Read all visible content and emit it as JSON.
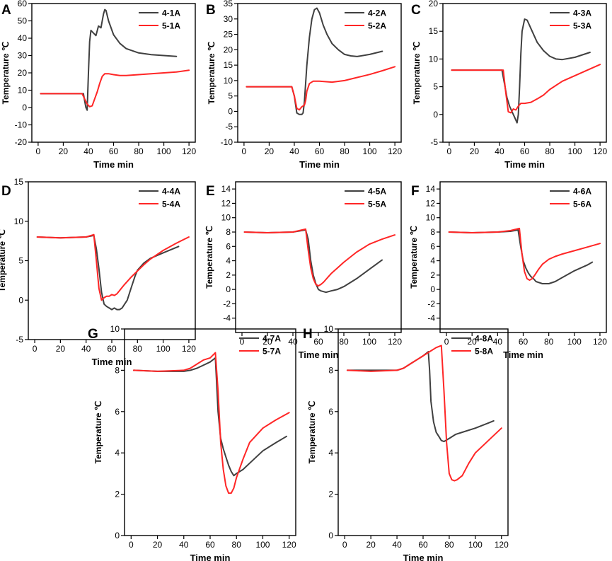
{
  "figure": {
    "colors": {
      "series_4": "#404040",
      "series_5": "#ff2626",
      "axis": "#000000"
    }
  },
  "chart_data": [
    {
      "panel": "A",
      "type": "line",
      "xlabel": "Time min",
      "ylabel": "Temperature ℃",
      "xlim": [
        -5,
        125
      ],
      "ylim": [
        -20,
        60
      ],
      "xticks": [
        0,
        20,
        40,
        60,
        80,
        100,
        120
      ],
      "yticks": [
        -20,
        -10,
        0,
        10,
        20,
        30,
        40,
        50,
        60
      ],
      "legend": "top-right",
      "series": [
        {
          "name": "4-1A",
          "color": "#404040",
          "x": [
            2,
            20,
            36,
            37,
            38,
            39,
            40,
            41,
            42,
            44,
            46,
            48,
            50,
            52,
            53,
            54,
            56,
            60,
            65,
            70,
            80,
            90,
            100,
            110
          ],
          "y": [
            8,
            8,
            8,
            4,
            0,
            -1.5,
            20,
            38,
            44.5,
            43,
            41.5,
            47,
            46,
            54,
            56.5,
            56,
            50,
            42,
            37,
            34,
            31.5,
            30.5,
            30,
            29.5
          ]
        },
        {
          "name": "5-1A",
          "color": "#ff2626",
          "x": [
            2,
            20,
            35,
            37,
            39,
            41,
            43,
            45,
            47,
            49,
            51,
            53,
            56,
            60,
            65,
            70,
            80,
            90,
            100,
            110,
            120
          ],
          "y": [
            8,
            8,
            8,
            5,
            2,
            0.5,
            1,
            5,
            9,
            14,
            18,
            19.5,
            19.5,
            19,
            18.5,
            18.5,
            19,
            19.5,
            20,
            20.5,
            21.5
          ]
        }
      ]
    },
    {
      "panel": "B",
      "type": "line",
      "xlabel": "Time min",
      "ylabel": "Temperature ℃",
      "xlim": [
        -5,
        125
      ],
      "ylim": [
        -10,
        35
      ],
      "xticks": [
        0,
        20,
        40,
        60,
        80,
        100,
        120
      ],
      "yticks": [
        -10,
        -5,
        0,
        5,
        10,
        15,
        20,
        25,
        30,
        35
      ],
      "legend": "top-right",
      "series": [
        {
          "name": "4-2A",
          "color": "#404040",
          "x": [
            2,
            20,
            38,
            40,
            42,
            44,
            46,
            47,
            48,
            50,
            52,
            54,
            56,
            58,
            60,
            63,
            66,
            70,
            75,
            80,
            85,
            90,
            100,
            110
          ],
          "y": [
            8,
            8,
            8,
            5,
            -0.5,
            -1,
            -1,
            -0.5,
            3,
            15,
            24,
            30,
            33,
            33.5,
            32,
            28,
            25,
            22,
            20,
            18.5,
            18,
            17.8,
            18.5,
            19.5
          ]
        },
        {
          "name": "5-2A",
          "color": "#ff2626",
          "x": [
            2,
            20,
            38,
            40,
            42,
            44,
            46,
            48,
            49,
            50,
            52,
            55,
            60,
            70,
            80,
            90,
            100,
            110,
            120
          ],
          "y": [
            8,
            8,
            8,
            5,
            1,
            0.5,
            1.5,
            2,
            3.5,
            6.5,
            9,
            9.8,
            9.8,
            9.5,
            10,
            11,
            12,
            13.2,
            14.5
          ]
        }
      ]
    },
    {
      "panel": "C",
      "type": "line",
      "xlabel": "Time min",
      "ylabel": "Temperature ℃",
      "xlim": [
        -5,
        125
      ],
      "ylim": [
        -5,
        20
      ],
      "xticks": [
        0,
        20,
        40,
        60,
        80,
        100,
        120
      ],
      "yticks": [
        -5,
        0,
        5,
        10,
        15,
        20
      ],
      "legend": "top-right",
      "series": [
        {
          "name": "4-3A",
          "color": "#404040",
          "x": [
            2,
            20,
            42,
            44,
            46,
            48,
            50,
            52,
            54,
            55,
            56,
            57,
            58,
            60,
            62,
            65,
            70,
            75,
            80,
            85,
            90,
            100,
            112
          ],
          "y": [
            8,
            8,
            8,
            5.5,
            3,
            1.5,
            0.5,
            -0.5,
            -1.5,
            0,
            5,
            11,
            15,
            17.2,
            17,
            15.5,
            13,
            11.5,
            10.5,
            10,
            9.9,
            10.3,
            11.2
          ]
        },
        {
          "name": "5-3A",
          "color": "#ff2626",
          "x": [
            2,
            20,
            43,
            45,
            47,
            49,
            51,
            53,
            55,
            57,
            60,
            65,
            70,
            75,
            80,
            90,
            100,
            110,
            120
          ],
          "y": [
            8,
            8,
            8,
            4,
            0.5,
            0.3,
            1,
            0.8,
            1.5,
            2,
            2,
            2.2,
            2.8,
            3.5,
            4.5,
            6,
            7,
            8,
            9
          ]
        }
      ]
    },
    {
      "panel": "D",
      "type": "line",
      "xlabel": "Time min",
      "ylabel": "Temperature ℃",
      "xlim": [
        -5,
        125
      ],
      "ylim": [
        -5,
        15
      ],
      "xticks": [
        0,
        20,
        40,
        60,
        80,
        100,
        120
      ],
      "yticks": [
        -5,
        0,
        5,
        10,
        15
      ],
      "legend": "top-right",
      "series": [
        {
          "name": "4-4A",
          "color": "#404040",
          "x": [
            2,
            20,
            40,
            46,
            48,
            50,
            52,
            54,
            56,
            58,
            60,
            62,
            64,
            66,
            68,
            70,
            72,
            75,
            78,
            80,
            85,
            90,
            100,
            112
          ],
          "y": [
            8,
            7.9,
            8,
            8.2,
            6.5,
            4,
            1,
            -0.5,
            -0.8,
            -1,
            -1.2,
            -1,
            -1.2,
            -1.2,
            -1,
            -0.5,
            0,
            1.5,
            3,
            3.8,
            4.7,
            5.3,
            6,
            6.8
          ]
        },
        {
          "name": "5-4A",
          "color": "#ff2626",
          "x": [
            2,
            20,
            40,
            46,
            48,
            50,
            52,
            54,
            56,
            58,
            60,
            62,
            64,
            66,
            68,
            70,
            75,
            80,
            85,
            90,
            100,
            110,
            120
          ],
          "y": [
            8,
            7.9,
            8,
            8.3,
            5,
            1.5,
            0,
            0.3,
            0.5,
            0.5,
            0.7,
            0.6,
            0.8,
            1.2,
            1.6,
            2,
            2.9,
            3.7,
            4.5,
            5.2,
            6.3,
            7.2,
            8
          ]
        }
      ]
    },
    {
      "panel": "E",
      "type": "line",
      "xlabel": "Time min",
      "ylabel": "Temperature ℃",
      "xlim": [
        -5,
        125
      ],
      "ylim": [
        -6,
        15
      ],
      "xticks": [
        0,
        20,
        40,
        60,
        80,
        100,
        120
      ],
      "yticks": [
        -4,
        -2,
        0,
        2,
        4,
        6,
        8,
        10,
        12,
        14
      ],
      "legend": "top-right",
      "series": [
        {
          "name": "4-5A",
          "color": "#404040",
          "x": [
            2,
            20,
            40,
            50,
            52,
            54,
            56,
            58,
            60,
            62,
            64,
            66,
            70,
            75,
            80,
            90,
            100,
            110
          ],
          "y": [
            8,
            7.9,
            8,
            8.3,
            7,
            4,
            2,
            0.8,
            0,
            -0.2,
            -0.3,
            -0.4,
            -0.2,
            0,
            0.4,
            1.5,
            2.8,
            4.1
          ]
        },
        {
          "name": "5-5A",
          "color": "#ff2626",
          "x": [
            2,
            20,
            40,
            50,
            52,
            54,
            56,
            58,
            60,
            62,
            64,
            66,
            70,
            75,
            80,
            90,
            100,
            110,
            120
          ],
          "y": [
            8,
            7.9,
            8,
            8.4,
            5.5,
            3,
            1.5,
            0.7,
            0.5,
            0.7,
            1,
            1.4,
            2.2,
            3,
            3.8,
            5.2,
            6.3,
            7,
            7.6
          ]
        }
      ]
    },
    {
      "panel": "F",
      "type": "line",
      "xlabel": "Time min",
      "ylabel": "Temperature ℃",
      "xlim": [
        -5,
        125
      ],
      "ylim": [
        -6,
        15
      ],
      "xticks": [
        0,
        20,
        40,
        60,
        80,
        100,
        120
      ],
      "yticks": [
        -4,
        -2,
        0,
        2,
        4,
        6,
        8,
        10,
        12,
        14
      ],
      "legend": "top-right",
      "series": [
        {
          "name": "4-6A",
          "color": "#404040",
          "x": [
            2,
            20,
            40,
            50,
            56,
            58,
            60,
            62,
            64,
            66,
            68,
            70,
            75,
            80,
            85,
            90,
            100,
            110,
            114
          ],
          "y": [
            8,
            7.9,
            8,
            8.1,
            8.3,
            6,
            4,
            3,
            2.3,
            1.8,
            1.5,
            1.1,
            0.8,
            0.8,
            1.1,
            1.6,
            2.6,
            3.4,
            3.8
          ]
        },
        {
          "name": "5-6A",
          "color": "#ff2626",
          "x": [
            2,
            20,
            40,
            50,
            57,
            59,
            61,
            63,
            65,
            67,
            69,
            72,
            75,
            80,
            85,
            90,
            100,
            110,
            120
          ],
          "y": [
            8,
            7.9,
            8,
            8.2,
            8.5,
            5,
            2.5,
            1.5,
            1.3,
            1.5,
            2,
            2.8,
            3.5,
            4.2,
            4.6,
            4.9,
            5.4,
            5.9,
            6.4
          ]
        }
      ]
    },
    {
      "panel": "G",
      "type": "line",
      "xlabel": "Time min",
      "ylabel": "Temperature ℃",
      "xlim": [
        -5,
        125
      ],
      "ylim": [
        0,
        10
      ],
      "xticks": [
        0,
        20,
        40,
        60,
        80,
        100,
        120
      ],
      "yticks": [
        0,
        2,
        4,
        6,
        8,
        10
      ],
      "legend": "top-right",
      "series": [
        {
          "name": "4-7A",
          "color": "#404040",
          "x": [
            2,
            20,
            40,
            45,
            50,
            55,
            60,
            64,
            66,
            68,
            70,
            72,
            74,
            76,
            78,
            80,
            85,
            90,
            100,
            110,
            118
          ],
          "y": [
            8,
            7.95,
            7.95,
            8,
            8.1,
            8.25,
            8.4,
            8.6,
            6,
            4.7,
            4.2,
            3.8,
            3.4,
            3.1,
            2.9,
            3,
            3.2,
            3.5,
            4.1,
            4.5,
            4.8
          ]
        },
        {
          "name": "5-7A",
          "color": "#ff2626",
          "x": [
            2,
            20,
            40,
            45,
            50,
            55,
            60,
            64,
            66,
            68,
            70,
            72,
            74,
            76,
            78,
            80,
            85,
            90,
            100,
            110,
            120
          ],
          "y": [
            8,
            7.95,
            8,
            8.1,
            8.3,
            8.5,
            8.6,
            8.85,
            7,
            4.5,
            3.2,
            2.4,
            2.05,
            2.05,
            2.3,
            2.8,
            3.7,
            4.5,
            5.2,
            5.6,
            5.95
          ]
        }
      ]
    },
    {
      "panel": "H",
      "type": "line",
      "xlabel": "Time min",
      "ylabel": "Temperature ℃",
      "xlim": [
        -5,
        125
      ],
      "ylim": [
        0,
        10
      ],
      "xticks": [
        0,
        20,
        40,
        60,
        80,
        100,
        120
      ],
      "yticks": [
        0,
        2,
        4,
        6,
        8,
        10
      ],
      "legend": "top-right",
      "series": [
        {
          "name": "4-8A",
          "color": "#404040",
          "x": [
            2,
            20,
            40,
            45,
            50,
            55,
            60,
            64,
            65,
            66,
            68,
            70,
            72,
            74,
            76,
            80,
            85,
            90,
            100,
            110,
            114
          ],
          "y": [
            8,
            8,
            8,
            8.1,
            8.3,
            8.5,
            8.7,
            8.9,
            8,
            6.5,
            5.5,
            5,
            4.8,
            4.6,
            4.55,
            4.7,
            4.9,
            5,
            5.2,
            5.45,
            5.55
          ]
        },
        {
          "name": "5-8A",
          "color": "#ff2626",
          "x": [
            2,
            20,
            40,
            45,
            50,
            55,
            60,
            65,
            70,
            74,
            76,
            78,
            80,
            82,
            84,
            86,
            90,
            95,
            100,
            110,
            120
          ],
          "y": [
            8,
            7.95,
            8,
            8.1,
            8.3,
            8.5,
            8.7,
            8.9,
            9.1,
            9.2,
            7,
            4.5,
            3,
            2.7,
            2.65,
            2.7,
            2.9,
            3.5,
            4,
            4.6,
            5.2
          ]
        }
      ]
    }
  ]
}
